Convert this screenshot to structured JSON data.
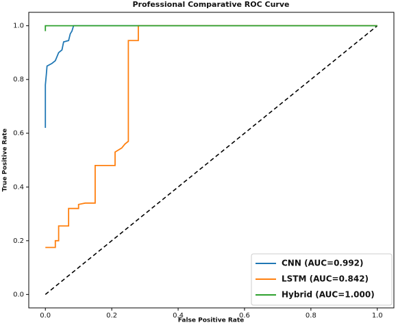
{
  "chart_data": {
    "type": "line",
    "title": "Professional Comparative ROC Curve",
    "x_label": "False Positive Rate",
    "y_label": "True Positive Rate",
    "xlim": [
      -0.05,
      1.05
    ],
    "ylim": [
      -0.05,
      1.05
    ],
    "xticks": [
      {
        "value": 0,
        "label": "0.0"
      },
      {
        "value": 0.2,
        "label": "0.2"
      },
      {
        "value": 0.4,
        "label": "0.4"
      },
      {
        "value": 0.6,
        "label": "0.6"
      },
      {
        "value": 0.8,
        "label": "0.8"
      },
      {
        "value": 1,
        "label": "1.0"
      }
    ],
    "yticks": [
      {
        "value": 0,
        "label": "0.0"
      },
      {
        "value": 0.2,
        "label": "0.2"
      },
      {
        "value": 0.4,
        "label": "0.4"
      },
      {
        "value": 0.6,
        "label": "0.6"
      },
      {
        "value": 0.8,
        "label": "0.8"
      },
      {
        "value": 1,
        "label": "1.0"
      }
    ],
    "grid": false,
    "legend_position": "lower right",
    "series": [
      {
        "name": "CNN (AUC=0.992)",
        "color": "#1f77b4",
        "x": [
          0,
          0,
          0.003,
          0.005,
          0.02,
          0.03,
          0.04,
          0.05,
          0.055,
          0.07,
          0.075,
          0.08,
          0.085,
          1
        ],
        "y": [
          0.62,
          0.78,
          0.82,
          0.85,
          0.86,
          0.87,
          0.9,
          0.91,
          0.94,
          0.945,
          0.97,
          0.98,
          1,
          1
        ]
      },
      {
        "name": "LSTM (AUC=0.842)",
        "color": "#ff7f0e",
        "x": [
          0,
          0.03,
          0.03,
          0.04,
          0.04,
          0.07,
          0.07,
          0.1,
          0.1,
          0.12,
          0.15,
          0.15,
          0.21,
          0.21,
          0.23,
          0.24,
          0.25,
          0.25,
          0.28,
          0.28,
          1
        ],
        "y": [
          0.175,
          0.175,
          0.2,
          0.2,
          0.255,
          0.255,
          0.32,
          0.32,
          0.335,
          0.34,
          0.34,
          0.48,
          0.48,
          0.53,
          0.545,
          0.56,
          0.57,
          0.945,
          0.945,
          1,
          1
        ]
      },
      {
        "name": "Hybrid (AUC=1.000)",
        "color": "#2ca02c",
        "x": [
          0,
          0,
          1
        ],
        "y": [
          0.98,
          1,
          1
        ]
      }
    ],
    "reference_line": {
      "x": [
        0,
        1
      ],
      "y": [
        0,
        1
      ],
      "color": "#000000",
      "style": "dashed"
    }
  }
}
